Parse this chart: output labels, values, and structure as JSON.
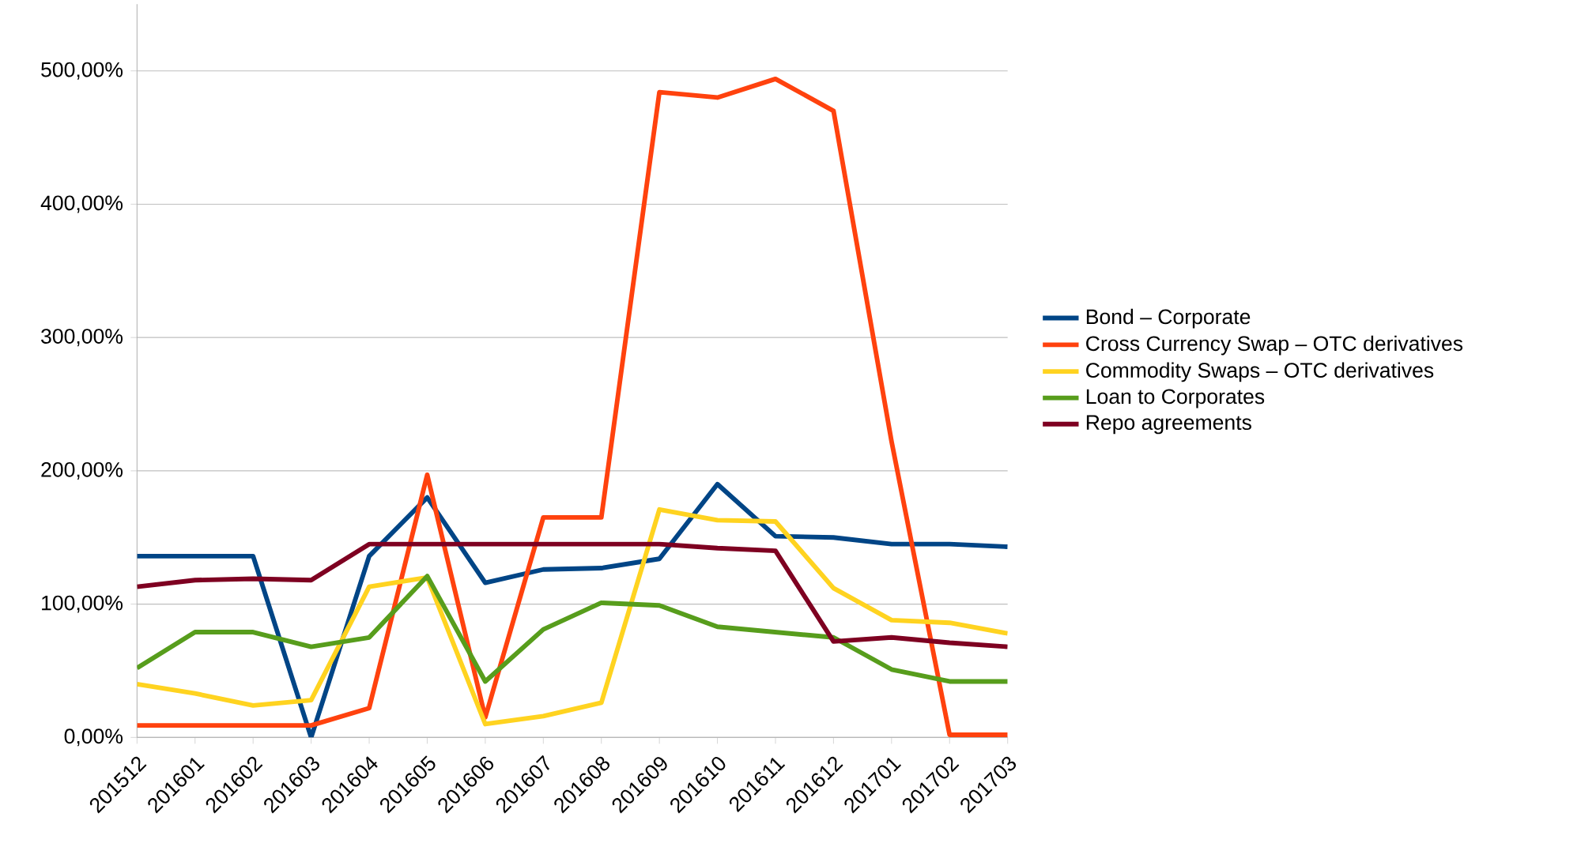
{
  "chart_data": {
    "type": "line",
    "categories": [
      "201512",
      "201601",
      "201602",
      "201603",
      "201604",
      "201605",
      "201606",
      "201607",
      "201608",
      "201609",
      "201610",
      "201611",
      "201612",
      "201701",
      "201702",
      "201703"
    ],
    "series": [
      {
        "name": "Bond – Corporate",
        "color": "#004586",
        "values": [
          136,
          136,
          136,
          0,
          136,
          180,
          116,
          126,
          127,
          134,
          190,
          151,
          150,
          145,
          145,
          143
        ]
      },
      {
        "name": "Cross Currency Swap – OTC derivatives",
        "color": "#ff420e",
        "values": [
          9,
          9,
          9,
          9,
          22,
          197,
          15,
          165,
          165,
          484,
          480,
          494,
          470,
          222,
          2,
          2
        ]
      },
      {
        "name": "Commodity Swaps – OTC derivatives",
        "color": "#ffd320",
        "values": [
          40,
          33,
          24,
          28,
          113,
          120,
          10,
          16,
          26,
          171,
          163,
          162,
          112,
          88,
          86,
          78
        ]
      },
      {
        "name": "Loan to Corporates",
        "color": "#579d1c",
        "values": [
          52,
          79,
          79,
          68,
          75,
          121,
          42,
          81,
          101,
          99,
          83,
          79,
          75,
          51,
          42,
          42
        ]
      },
      {
        "name": "Repo agreements",
        "color": "#7e0021",
        "values": [
          113,
          118,
          119,
          118,
          145,
          145,
          145,
          145,
          145,
          145,
          142,
          140,
          72,
          75,
          71,
          68
        ]
      }
    ],
    "ylim": [
      0,
      550
    ],
    "yticks": [
      {
        "value": 0,
        "label": "0,00%"
      },
      {
        "value": 100,
        "label": "100,00%"
      },
      {
        "value": 200,
        "label": "200,00%"
      },
      {
        "value": 300,
        "label": "300,00%"
      },
      {
        "value": 400,
        "label": "400,00%"
      },
      {
        "value": 500,
        "label": "500,00%"
      }
    ],
    "grid": "y",
    "legend": "right",
    "marker": "none",
    "line_style": "solid"
  }
}
